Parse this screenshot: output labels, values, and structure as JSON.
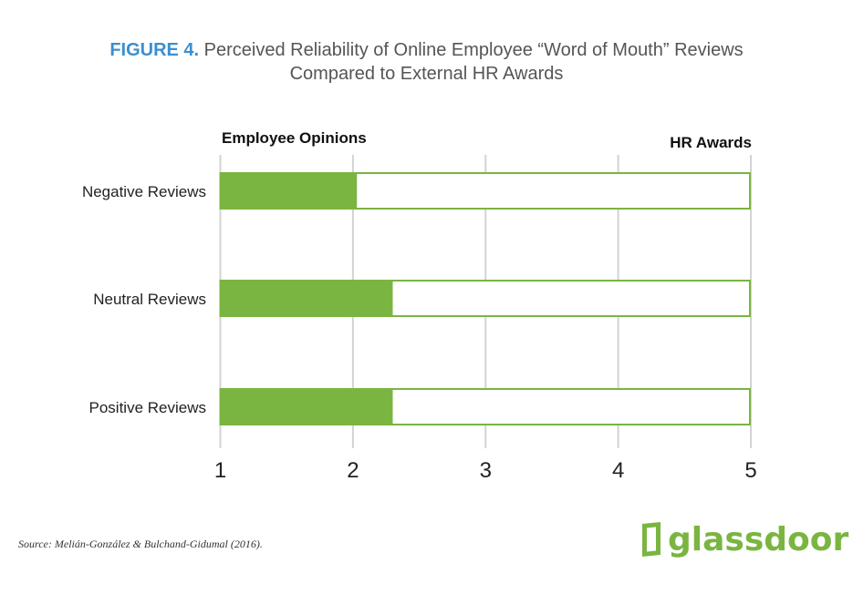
{
  "chart_data": {
    "type": "bar",
    "title_prefix": "FIGURE 4.",
    "title_line1": "Perceived Reliability of Online Employee “Word of Mouth” Reviews",
    "title_line2": "Compared to External HR Awards",
    "left_label": "Employee Opinions",
    "right_label": "HR Awards",
    "categories": [
      "Negative Reviews",
      "Neutral Reviews",
      "Positive Reviews"
    ],
    "values": [
      2.03,
      2.3,
      2.3
    ],
    "xlim": [
      1,
      5
    ],
    "xticks": [
      "1",
      "2",
      "3",
      "4",
      "5"
    ],
    "grid": true,
    "bar_color": "#7ab541",
    "grid_color": "#d3d3d3"
  },
  "source": "Source: Melián-González & Bulchand-Gidumal (2016).",
  "logo_text": "glassdoor"
}
